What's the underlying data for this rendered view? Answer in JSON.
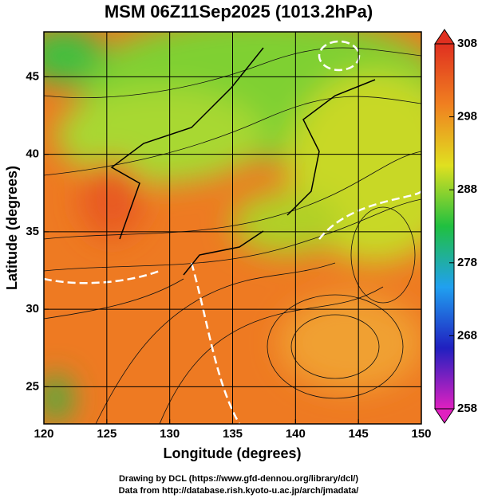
{
  "chart_data": {
    "type": "map",
    "title": "MSM 06Z11Sep2025 (1013.2hPa)",
    "x_label": "Longitude (degrees)",
    "y_label": "Latitude  (degrees)",
    "xlim": [
      120,
      150
    ],
    "xticks": [
      120,
      125,
      130,
      135,
      140,
      145,
      150
    ],
    "ylim": [
      22.6,
      47.9
    ],
    "yticks": [
      25,
      30,
      35,
      40,
      45
    ],
    "grid": true,
    "colorbar": {
      "lim": [
        258,
        308
      ],
      "ticks": [
        258,
        268,
        278,
        288,
        298,
        308
      ],
      "colors": [
        "#e020c0",
        "#2020c0",
        "#20a0f0",
        "#20c040",
        "#e0e020",
        "#f08020",
        "#e03020"
      ]
    },
    "credits": [
      "Drawing by DCL (https://www.gfd-dennou.org/library/dcl/)",
      "Data from http://database.rish.kyoto-u.ac.jp/arch/jmadata/"
    ]
  }
}
